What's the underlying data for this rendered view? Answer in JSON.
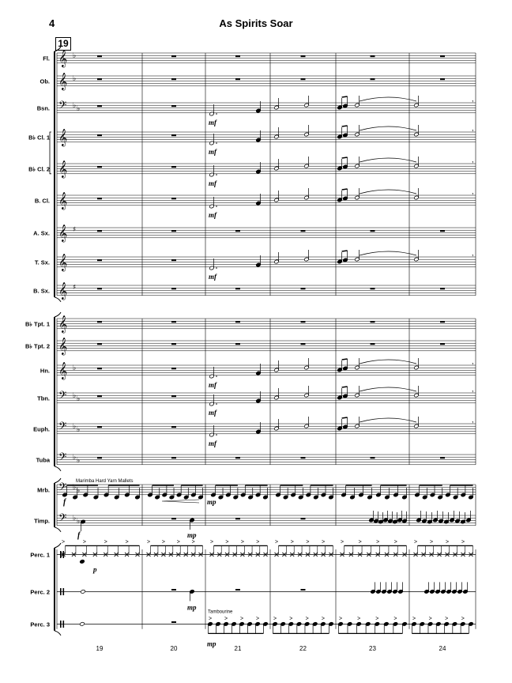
{
  "page_number": "4",
  "title": "As Spirits Soar",
  "rehearsal_mark": "19",
  "instruments": [
    {
      "label": "Fl."
    },
    {
      "label": "Ob."
    },
    {
      "label": "Bsn."
    },
    {
      "label": "B♭ Cl. 1"
    },
    {
      "label": "B♭ Cl. 2"
    },
    {
      "label": "B. Cl."
    },
    {
      "label": "A. Sx."
    },
    {
      "label": "T. Sx."
    },
    {
      "label": "B. Sx."
    },
    {
      "label": "B♭ Tpt. 1"
    },
    {
      "label": "B♭ Tpt. 2"
    },
    {
      "label": "Hn."
    },
    {
      "label": "Tbn."
    },
    {
      "label": "Euph."
    },
    {
      "label": "Tuba"
    },
    {
      "label": "Mrb."
    },
    {
      "label": "Timp."
    },
    {
      "label": "Perc. 1"
    },
    {
      "label": "Perc. 2"
    },
    {
      "label": "Perc. 3"
    }
  ],
  "annotations": {
    "mallets": "Marimba Hard Yarn Mallets",
    "tambourine": "Tambourine"
  },
  "dynamics": {
    "mf": "mf",
    "mp": "mp",
    "f": "f",
    "p": "p"
  },
  "measure_numbers": [
    "19",
    "20",
    "21",
    "22",
    "23",
    "24"
  ]
}
